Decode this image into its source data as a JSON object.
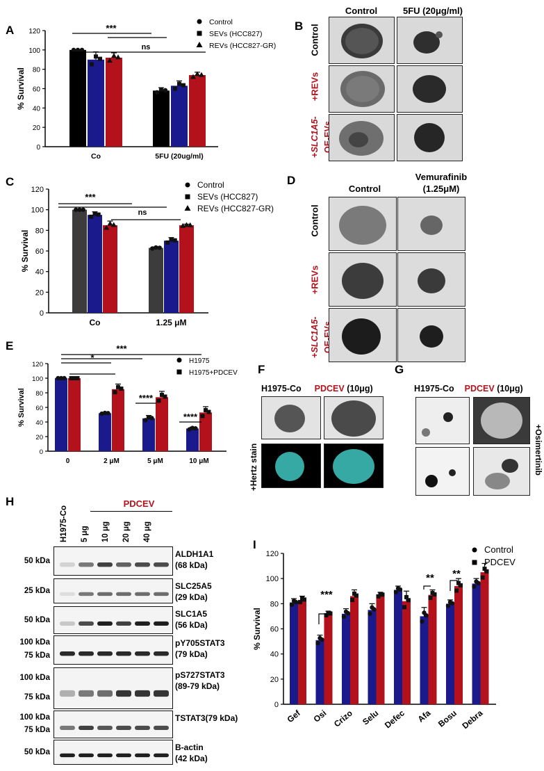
{
  "panel_letters": {
    "A": "A",
    "B": "B",
    "C": "C",
    "D": "D",
    "E": "E",
    "F": "F",
    "G": "G",
    "H": "H",
    "I": "I"
  },
  "colors": {
    "control": "#000000",
    "sevs": "#1a1a8c",
    "revs": "#b3121c",
    "grey": "#3c3c3c",
    "cyan": "#3fc7c2"
  },
  "sig": {
    "three": "***",
    "ns": "ns",
    "one": "*",
    "four": "****",
    "two": "**"
  },
  "chart_data": [
    {
      "panel": "A",
      "type": "bar",
      "categories": [
        "Co",
        "5FU (20ug/ml)"
      ],
      "ylabel": "% Survival",
      "ylim": [
        0,
        120
      ],
      "yticks": [
        0,
        20,
        40,
        60,
        80,
        100,
        120
      ],
      "legend": [
        "Control",
        "SEVs (HCC827)",
        "REVs (HCC827-GR)"
      ],
      "legend_placement": "top-right",
      "series": [
        {
          "name": "Control",
          "values": [
            100,
            58
          ],
          "err": [
            0,
            3
          ]
        },
        {
          "name": "SEVs (HCC827)",
          "values": [
            90,
            63
          ],
          "err": [
            8,
            5
          ]
        },
        {
          "name": "REVs (HCC827-GR)",
          "values": [
            92,
            74
          ],
          "err": [
            5,
            3
          ]
        }
      ]
    },
    {
      "panel": "C",
      "type": "bar",
      "categories": [
        "Co",
        "1.25 μM"
      ],
      "ylabel": "% Survival",
      "ylim": [
        0,
        120
      ],
      "yticks": [
        0,
        20,
        40,
        60,
        80,
        100,
        120
      ],
      "legend": [
        "Control",
        "SEVs (HCC827)",
        "REVs (HCC827-GR)"
      ],
      "legend_placement": "top-right",
      "series": [
        {
          "name": "Control",
          "values": [
            100,
            63
          ],
          "err": [
            0,
            1
          ]
        },
        {
          "name": "SEVs (HCC827)",
          "values": [
            95,
            70
          ],
          "err": [
            3,
            3
          ]
        },
        {
          "name": "REVs (HCC827-GR)",
          "values": [
            85,
            85
          ],
          "err": [
            4,
            1
          ]
        }
      ]
    },
    {
      "panel": "E",
      "type": "bar",
      "categories": [
        "0",
        "2 μM",
        "5 μM",
        "10 μM"
      ],
      "ylabel": "% Survival",
      "ylim": [
        0,
        120
      ],
      "yticks": [
        0,
        20,
        40,
        60,
        80,
        100,
        120
      ],
      "legend": [
        "H1975",
        "H1975+PDCEV"
      ],
      "legend_placement": "top-right",
      "series": [
        {
          "name": "H1975",
          "values": [
            100,
            52,
            45,
            31
          ],
          "err": [
            0,
            1,
            4,
            2
          ]
        },
        {
          "name": "H1975+PDCEV",
          "values": [
            100,
            85,
            74,
            53
          ],
          "err": [
            0,
            7,
            8,
            8
          ]
        }
      ]
    },
    {
      "panel": "I",
      "type": "bar",
      "categories": [
        "Gef",
        "Osi",
        "Crizo",
        "Selu",
        "Defec",
        "Afa",
        "Bosu",
        "Debra"
      ],
      "ylabel": "% Survival",
      "ylim": [
        0,
        120
      ],
      "yticks": [
        0,
        20,
        40,
        60,
        80,
        100,
        120
      ],
      "legend": [
        "Control",
        "PDCEV"
      ],
      "legend_placement": "top-right",
      "series": [
        {
          "name": "Control",
          "values": [
            81,
            51,
            72,
            75,
            91,
            70,
            80,
            96
          ],
          "err": [
            3,
            4,
            4,
            5,
            3,
            7,
            3,
            4
          ]
        },
        {
          "name": "PDCEV",
          "values": [
            83,
            72,
            86,
            87,
            82,
            87,
            94,
            105
          ],
          "err": [
            3,
            2,
            5,
            2,
            8,
            4,
            6,
            7
          ]
        }
      ]
    }
  ],
  "panelA": {
    "tick_labels": [
      "0",
      "20",
      "40",
      "60",
      "80",
      "100",
      "120"
    ],
    "cats": [
      "Co",
      "5FU (20ug/ml)"
    ],
    "ylabel": "% Survival",
    "legend": [
      "Control",
      "SEVs (HCC827)",
      "REVs (HCC827-GR)"
    ]
  },
  "panelC": {
    "tick_labels": [
      "0",
      "20",
      "40",
      "60",
      "80",
      "100",
      "120"
    ],
    "cats": [
      "Co",
      "1.25 μM"
    ],
    "ylabel": "% Survival",
    "legend": [
      "Control",
      "SEVs (HCC827)",
      "REVs (HCC827-GR)"
    ]
  },
  "panelE": {
    "tick_labels": [
      "0",
      "20",
      "40",
      "60",
      "80",
      "100",
      "120"
    ],
    "cats": [
      "0",
      "2 μM",
      "5 μM",
      "10 μM"
    ],
    "ylabel": "% Survival",
    "legend": [
      "H1975",
      "H1975+PDCEV"
    ]
  },
  "panelI": {
    "tick_labels": [
      "0",
      "20",
      "40",
      "60",
      "80",
      "100",
      "120"
    ],
    "cats": [
      "Gef",
      "Osi",
      "Crizo",
      "Selu",
      "Defec",
      "Afa",
      "Bosu",
      "Debra"
    ],
    "ylabel": "% Survival",
    "legend": [
      "Control",
      "PDCEV"
    ]
  },
  "panelB": {
    "col1": "Control",
    "col2": "5FU (20μg/ml)",
    "row1": "Control",
    "row2": "+REVs",
    "row3a": "+",
    "row3b": "SLC1A5",
    "row3c": "-",
    "row3d": "OE-EVs"
  },
  "panelD": {
    "col1": "Control",
    "col2a": "Vemurafinib",
    "col2b": "(1.25μM)",
    "row1": "Control",
    "row2": "+REVs",
    "row3a": "+",
    "row3b": "SLC1A5",
    "row3c": "-",
    "row3d": "OE-EVs"
  },
  "panelF": {
    "col1": "H1975-Co",
    "col2a": "PDCEV",
    "col2b": " (10μg)",
    "rowlab": "+Hertz stain"
  },
  "panelG": {
    "col1": "H1975-Co",
    "col2a": "PDCEV",
    "col2b": " (10μg)",
    "rowlab": "+Osimertinib"
  },
  "panelH": {
    "lanes": [
      "H1975-Co",
      "5 μg",
      "10 μg",
      "20 μg",
      "40 μg"
    ],
    "pdcev": "PDCEV",
    "blots": [
      {
        "name": "ALDH1A1",
        "kda": "(68 kDa)",
        "marker": [
          "50 kDa"
        ]
      },
      {
        "name": "SLC25A5",
        "kda": "(29 kDa)",
        "marker": [
          "25 kDa"
        ]
      },
      {
        "name": "SLC1A5",
        "kda": "(56 kDa)",
        "marker": [
          "50 kDa"
        ]
      },
      {
        "name": "pY705STAT3",
        "kda": "(79 kDa)",
        "marker": [
          "100 kDa",
          "75 kDa"
        ]
      },
      {
        "name": "pS727STAT3",
        "kda": "(89-79 kDa)",
        "marker": [
          "100 kDa",
          "75 kDa"
        ]
      },
      {
        "name": "TSTAT3(79 kDa)",
        "kda": "",
        "marker": [
          "100 kDa",
          "75 kDa"
        ]
      },
      {
        "name": "B-actin",
        "kda": "(42 kDa)",
        "marker": [
          "50 kDa"
        ]
      }
    ]
  }
}
